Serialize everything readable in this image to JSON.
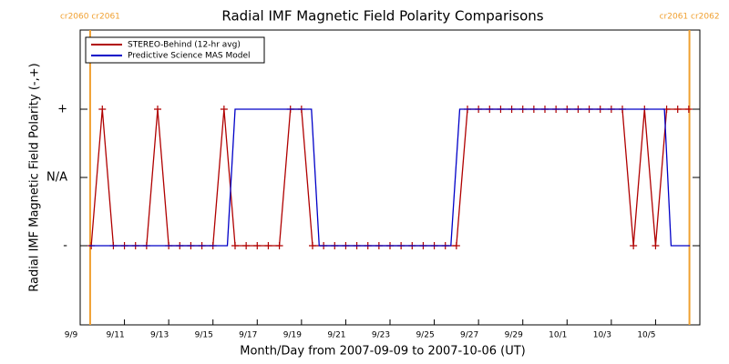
{
  "chart_data": {
    "type": "line",
    "title": "Radial IMF Magnetic Field Polarity Comparisons",
    "x_label": "Month/Day from 2007-09-09 to 2007-10-06 (UT)",
    "y_label": "Radial IMF Magnetic Field Polarity (-,+)",
    "xlim": [
      0,
      28
    ],
    "xticks": [
      {
        "value": 0,
        "label": "9/9"
      },
      {
        "value": 2,
        "label": "9/11"
      },
      {
        "value": 4,
        "label": "9/13"
      },
      {
        "value": 6,
        "label": "9/15"
      },
      {
        "value": 8,
        "label": "9/17"
      },
      {
        "value": 10,
        "label": "9/19"
      },
      {
        "value": 12,
        "label": "9/21"
      },
      {
        "value": 14,
        "label": "9/23"
      },
      {
        "value": 16,
        "label": "9/25"
      },
      {
        "value": 18,
        "label": "9/27"
      },
      {
        "value": 20,
        "label": "9/29"
      },
      {
        "value": 22,
        "label": "10/1"
      },
      {
        "value": 24,
        "label": "10/3"
      },
      {
        "value": 26,
        "label": "10/5"
      }
    ],
    "ylim": [
      -2.16,
      2.16
    ],
    "yticks": [
      {
        "value": -1,
        "label": "-"
      },
      {
        "value": 0,
        "label": "N/A"
      },
      {
        "value": 1,
        "label": "+"
      }
    ],
    "legend": "upper-left",
    "annotations": [
      {
        "text": "cr2060 cr2061",
        "x": 0.45,
        "color": "#f0a030"
      },
      {
        "text": "cr2061 cr2062",
        "x": 27.53,
        "color": "#f0a030"
      }
    ],
    "series": [
      {
        "name": "STEREO-Behind (12-hr avg)",
        "color": "#b00000",
        "markers": true,
        "x": [
          0.5,
          1,
          1.5,
          2,
          2.5,
          3,
          3.5,
          4,
          4.5,
          5,
          5.5,
          6,
          6.5,
          7,
          7.5,
          8,
          8.5,
          9,
          9.5,
          10,
          10.5,
          11,
          11.5,
          12,
          12.5,
          13,
          13.5,
          14,
          14.5,
          15,
          15.5,
          16,
          16.5,
          17,
          17.5,
          18,
          18.5,
          19,
          19.5,
          20,
          20.5,
          21,
          21.5,
          22,
          22.5,
          23,
          23.5,
          24,
          24.5,
          25,
          25.5,
          26,
          26.5,
          27,
          27.5
        ],
        "values": [
          -1,
          1,
          -1,
          -1,
          -1,
          -1,
          1,
          -1,
          -1,
          -1,
          -1,
          -1,
          1,
          -1,
          -1,
          -1,
          -1,
          -1,
          1,
          1,
          -1,
          -1,
          -1,
          -1,
          -1,
          -1,
          -1,
          -1,
          -1,
          -1,
          -1,
          -1,
          -1,
          -1,
          1,
          1,
          1,
          1,
          1,
          1,
          1,
          1,
          1,
          1,
          1,
          1,
          1,
          1,
          1,
          -1,
          1,
          -1,
          1,
          1,
          1
        ]
      },
      {
        "name": "Predictive Science MAS Model",
        "color": "#0000c8",
        "markers": false,
        "x": [
          0.4,
          6.65,
          7.0,
          10.45,
          10.8,
          16.75,
          17.15,
          26.4,
          26.7,
          27.55
        ],
        "values": [
          -1,
          -1,
          1,
          1,
          -1,
          -1,
          1,
          1,
          -1,
          -1
        ]
      }
    ]
  }
}
